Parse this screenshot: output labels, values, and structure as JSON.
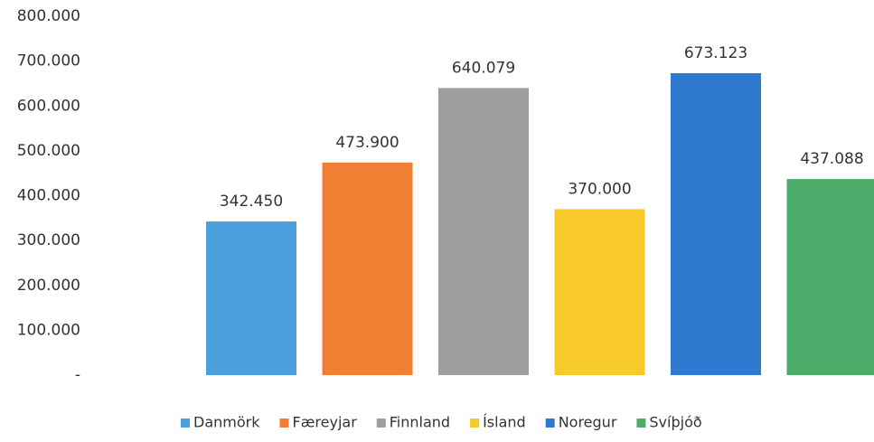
{
  "chart_data": {
    "type": "bar",
    "series": [
      {
        "name": "Danmörk",
        "color": "#4a9fdc",
        "values": [
          342450
        ],
        "value_labels": [
          "342.450"
        ]
      },
      {
        "name": "Færeyjar",
        "color": "#f07f33",
        "values": [
          473900
        ],
        "value_labels": [
          "473.900"
        ]
      },
      {
        "name": "Finnland",
        "color": "#9e9e9e",
        "values": [
          640079
        ],
        "value_labels": [
          "640.079"
        ]
      },
      {
        "name": "Ísland",
        "color": "#f7c92a",
        "values": [
          370000
        ],
        "value_labels": [
          "370.000"
        ]
      },
      {
        "name": "Noregur",
        "color": "#2f79d1",
        "values": [
          673123
        ],
        "value_labels": [
          "673.123"
        ]
      },
      {
        "name": "Svíþjóð",
        "color": "#4cad6a",
        "values": [
          437088
        ],
        "value_labels": [
          "437.088"
        ]
      }
    ],
    "ylim": [
      0,
      800000
    ],
    "yticks": [
      {
        "value": 0,
        "label": "-"
      },
      {
        "value": 100000,
        "label": "100.000"
      },
      {
        "value": 200000,
        "label": "200.000"
      },
      {
        "value": 300000,
        "label": "300.000"
      },
      {
        "value": 400000,
        "label": "400.000"
      },
      {
        "value": 500000,
        "label": "500.000"
      },
      {
        "value": 600000,
        "label": "600.000"
      },
      {
        "value": 700000,
        "label": "700.000"
      },
      {
        "value": 800000,
        "label": "800.000"
      }
    ],
    "grid": false,
    "legend": "bottom"
  }
}
